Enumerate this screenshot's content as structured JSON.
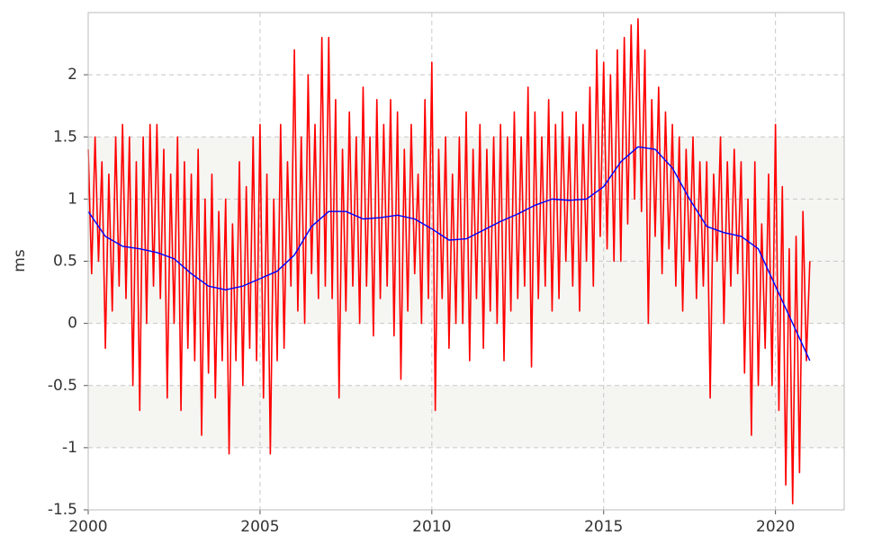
{
  "chart_data": {
    "type": "line",
    "ylabel": "ms",
    "xlim": [
      2000,
      2022
    ],
    "xticks": [
      2000,
      2005,
      2010,
      2015,
      2020
    ],
    "ylim": [
      -1.5,
      2.5
    ],
    "yticks": [
      -1.5,
      -1,
      -0.5,
      0,
      0.5,
      1,
      1.5,
      2
    ],
    "grid": true,
    "series": [
      {
        "color": "#ff0000",
        "x": [
          2000,
          2000.1,
          2000.2,
          2000.3,
          2000.4,
          2000.5,
          2000.6,
          2000.7,
          2000.8,
          2000.9,
          2001,
          2001.1,
          2001.2,
          2001.3,
          2001.4,
          2001.5,
          2001.6,
          2001.7,
          2001.8,
          2001.9,
          2002,
          2002.1,
          2002.2,
          2002.3,
          2002.4,
          2002.5,
          2002.6,
          2002.7,
          2002.8,
          2002.9,
          2003,
          2003.1,
          2003.2,
          2003.3,
          2003.4,
          2003.5,
          2003.6,
          2003.7,
          2003.8,
          2003.9,
          2004,
          2004.1,
          2004.2,
          2004.3,
          2004.4,
          2004.5,
          2004.6,
          2004.7,
          2004.8,
          2004.9,
          2005,
          2005.1,
          2005.2,
          2005.3,
          2005.4,
          2005.5,
          2005.6,
          2005.7,
          2005.8,
          2005.9,
          2006,
          2006.1,
          2006.2,
          2006.3,
          2006.4,
          2006.5,
          2006.6,
          2006.7,
          2006.8,
          2006.9,
          2007,
          2007.1,
          2007.2,
          2007.3,
          2007.4,
          2007.5,
          2007.6,
          2007.7,
          2007.8,
          2007.9,
          2008,
          2008.1,
          2008.2,
          2008.3,
          2008.4,
          2008.5,
          2008.6,
          2008.7,
          2008.8,
          2008.9,
          2009,
          2009.1,
          2009.2,
          2009.3,
          2009.4,
          2009.5,
          2009.6,
          2009.7,
          2009.8,
          2009.9,
          2010,
          2010.1,
          2010.2,
          2010.3,
          2010.4,
          2010.5,
          2010.6,
          2010.7,
          2010.8,
          2010.9,
          2011,
          2011.1,
          2011.2,
          2011.3,
          2011.4,
          2011.5,
          2011.6,
          2011.7,
          2011.8,
          2011.9,
          2012,
          2012.1,
          2012.2,
          2012.3,
          2012.4,
          2012.5,
          2012.6,
          2012.7,
          2012.8,
          2012.9,
          2013,
          2013.1,
          2013.2,
          2013.3,
          2013.4,
          2013.5,
          2013.6,
          2013.7,
          2013.8,
          2013.9,
          2014,
          2014.1,
          2014.2,
          2014.3,
          2014.4,
          2014.5,
          2014.6,
          2014.7,
          2014.8,
          2014.9,
          2015,
          2015.1,
          2015.2,
          2015.3,
          2015.4,
          2015.5,
          2015.6,
          2015.7,
          2015.8,
          2015.9,
          2016,
          2016.1,
          2016.2,
          2016.3,
          2016.4,
          2016.5,
          2016.6,
          2016.7,
          2016.8,
          2016.9,
          2017,
          2017.1,
          2017.2,
          2017.3,
          2017.4,
          2017.5,
          2017.6,
          2017.7,
          2017.8,
          2017.9,
          2018,
          2018.1,
          2018.2,
          2018.3,
          2018.4,
          2018.5,
          2018.6,
          2018.7,
          2018.8,
          2018.9,
          2019,
          2019.1,
          2019.2,
          2019.3,
          2019.4,
          2019.5,
          2019.6,
          2019.7,
          2019.8,
          2019.9,
          2020,
          2020.1,
          2020.2,
          2020.3,
          2020.4,
          2020.5,
          2020.6,
          2020.7,
          2020.8,
          2020.9,
          2021
        ],
        "values": [
          1.4,
          0.4,
          1.5,
          0.5,
          1.3,
          -0.2,
          1.2,
          0.1,
          1.5,
          0.3,
          1.6,
          0.2,
          1.5,
          -0.5,
          1.3,
          -0.7,
          1.5,
          0.0,
          1.6,
          0.3,
          1.6,
          0.2,
          1.4,
          -0.6,
          1.2,
          0.0,
          1.5,
          -0.7,
          1.3,
          -0.2,
          1.2,
          -0.3,
          1.4,
          -0.9,
          1.0,
          -0.4,
          1.2,
          -0.6,
          0.9,
          -0.3,
          1.0,
          -1.05,
          0.8,
          -0.3,
          1.3,
          -0.5,
          1.1,
          -0.2,
          1.5,
          -0.3,
          1.6,
          -0.6,
          1.2,
          -1.05,
          1.0,
          -0.3,
          1.6,
          -0.2,
          1.3,
          0.3,
          2.2,
          0.1,
          1.5,
          0.0,
          2.0,
          0.4,
          1.6,
          0.2,
          2.3,
          0.3,
          2.3,
          0.2,
          1.8,
          -0.6,
          1.4,
          0.1,
          1.7,
          0.3,
          1.5,
          0.0,
          1.9,
          0.3,
          1.5,
          -0.1,
          1.8,
          0.2,
          1.6,
          0.3,
          1.8,
          -0.1,
          1.7,
          -0.45,
          1.4,
          0.1,
          1.6,
          0.4,
          1.2,
          0.0,
          1.8,
          0.2,
          2.1,
          -0.7,
          1.4,
          0.2,
          1.5,
          -0.2,
          1.2,
          0.0,
          1.5,
          0.0,
          1.7,
          -0.3,
          1.4,
          0.2,
          1.6,
          -0.2,
          1.4,
          0.1,
          1.5,
          0.0,
          1.6,
          -0.3,
          1.5,
          0.1,
          1.7,
          0.2,
          1.5,
          0.3,
          1.9,
          -0.35,
          1.7,
          0.2,
          1.5,
          0.3,
          1.8,
          0.1,
          1.6,
          0.2,
          1.7,
          0.5,
          1.5,
          0.3,
          1.7,
          0.1,
          1.6,
          0.5,
          1.9,
          0.3,
          2.2,
          0.7,
          2.1,
          0.6,
          2.0,
          0.5,
          2.2,
          0.5,
          2.3,
          0.8,
          2.4,
          1.0,
          2.45,
          0.9,
          2.2,
          0.0,
          1.8,
          0.7,
          1.9,
          0.4,
          1.7,
          0.6,
          1.6,
          0.3,
          1.5,
          0.1,
          1.4,
          0.5,
          1.5,
          0.2,
          1.3,
          0.3,
          1.3,
          -0.6,
          1.2,
          0.5,
          1.5,
          0.0,
          1.3,
          0.3,
          1.4,
          0.4,
          1.3,
          -0.4,
          1.0,
          -0.9,
          1.3,
          -0.5,
          0.8,
          -0.2,
          1.2,
          -0.5,
          1.6,
          -0.7,
          1.1,
          -1.3,
          0.6,
          -1.45,
          0.7,
          -1.2,
          0.9,
          -0.3,
          0.5
        ]
      },
      {
        "color": "#0000ff",
        "x": [
          2000,
          2000.5,
          2001,
          2001.5,
          2002,
          2002.5,
          2003,
          2003.5,
          2004,
          2004.5,
          2005,
          2005.5,
          2006,
          2006.5,
          2007,
          2007.5,
          2008,
          2008.5,
          2009,
          2009.5,
          2010,
          2010.5,
          2011,
          2011.5,
          2012,
          2012.5,
          2013,
          2013.5,
          2014,
          2014.5,
          2015,
          2015.5,
          2016,
          2016.5,
          2017,
          2017.5,
          2018,
          2018.5,
          2019,
          2019.5,
          2020,
          2020.5,
          2021
        ],
        "values": [
          0.9,
          0.7,
          0.62,
          0.6,
          0.57,
          0.52,
          0.4,
          0.3,
          0.27,
          0.3,
          0.36,
          0.42,
          0.55,
          0.78,
          0.9,
          0.9,
          0.84,
          0.85,
          0.87,
          0.84,
          0.76,
          0.67,
          0.68,
          0.75,
          0.82,
          0.88,
          0.95,
          1.0,
          0.99,
          1.0,
          1.1,
          1.3,
          1.42,
          1.4,
          1.25,
          1.0,
          0.78,
          0.73,
          0.7,
          0.6,
          0.3,
          0.0,
          -0.3
        ]
      }
    ]
  }
}
